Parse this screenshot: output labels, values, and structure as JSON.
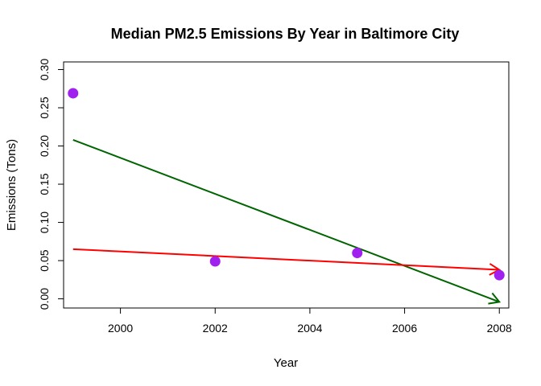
{
  "chart_data": {
    "type": "scatter",
    "title": "Median PM2.5 Emissions By Year in Baltimore City",
    "xlabel": "Year",
    "ylabel": "Emissions  (Tons)",
    "xlim": [
      1998.8,
      2008.2
    ],
    "ylim": [
      -0.012,
      0.31
    ],
    "x_ticks": [
      2000,
      2002,
      2004,
      2006,
      2008
    ],
    "y_ticks": [
      0.0,
      0.05,
      0.1,
      0.15,
      0.2,
      0.25,
      0.3
    ],
    "x_tick_labels": [
      "2000",
      "2002",
      "2004",
      "2006",
      "2008"
    ],
    "y_tick_labels": [
      "0.00",
      "0.05",
      "0.10",
      "0.15",
      "0.20",
      "0.25",
      "0.30"
    ],
    "grid": false,
    "points": {
      "color": "#a020f0",
      "x": [
        1999,
        2002,
        2005,
        2008
      ],
      "y": [
        0.269,
        0.049,
        0.06,
        0.031
      ]
    },
    "arrows": [
      {
        "color": "#006400",
        "x0": 1999,
        "y0": 0.208,
        "x1": 2008,
        "y1": -0.004
      },
      {
        "color": "#ff0000",
        "x0": 1999,
        "y0": 0.065,
        "x1": 2008,
        "y1": 0.038
      }
    ]
  }
}
